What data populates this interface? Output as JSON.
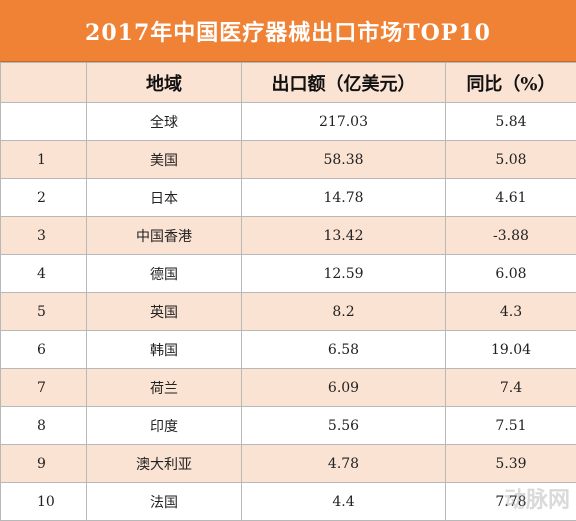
{
  "chart_data": {
    "type": "table",
    "title": "2017年中国医疗器械出口市场TOP10",
    "columns": [
      "",
      "地域",
      "出口额（亿美元）",
      "同比（%）"
    ],
    "rows": [
      {
        "rank": "",
        "region": "全球",
        "value": "217.03",
        "yoy": "5.84"
      },
      {
        "rank": "1",
        "region": "美国",
        "value": "58.38",
        "yoy": "5.08"
      },
      {
        "rank": "2",
        "region": "日本",
        "value": "14.78",
        "yoy": "4.61"
      },
      {
        "rank": "3",
        "region": "中国香港",
        "value": "13.42",
        "yoy": "-3.88"
      },
      {
        "rank": "4",
        "region": "德国",
        "value": "12.59",
        "yoy": "6.08"
      },
      {
        "rank": "5",
        "region": "英国",
        "value": "8.2",
        "yoy": "4.3"
      },
      {
        "rank": "6",
        "region": "韩国",
        "value": "6.58",
        "yoy": "19.04"
      },
      {
        "rank": "7",
        "region": "荷兰",
        "value": "6.09",
        "yoy": "7.4"
      },
      {
        "rank": "8",
        "region": "印度",
        "value": "5.56",
        "yoy": "7.51"
      },
      {
        "rank": "9",
        "region": "澳大利亚",
        "value": "4.78",
        "yoy": "5.39"
      },
      {
        "rank": "10",
        "region": "法国",
        "value": "4.4",
        "yoy": "7.78"
      }
    ]
  },
  "colors": {
    "title_bg": "#f08236",
    "stripe": "#fbe3d3",
    "border": "#b8b8b8"
  }
}
